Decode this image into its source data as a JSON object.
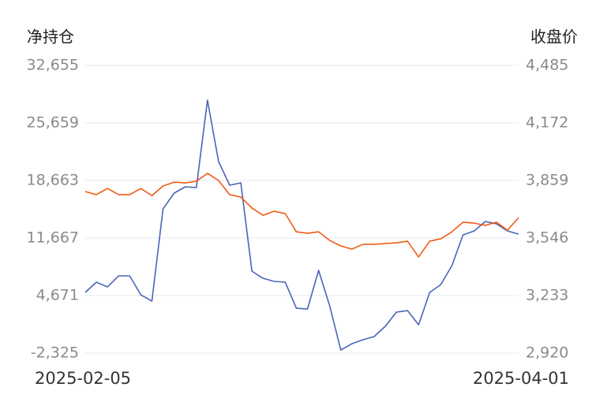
{
  "chart_data": {
    "type": "line",
    "ylabel": "净持仓",
    "y2label": "收盘价",
    "categories": [
      "2025-02-05",
      null,
      null,
      null,
      null,
      null,
      null,
      null,
      null,
      null,
      null,
      null,
      null,
      null,
      null,
      null,
      null,
      null,
      null,
      null,
      null,
      null,
      null,
      null,
      null,
      null,
      null,
      null,
      null,
      null,
      null,
      null,
      null,
      null,
      null,
      null,
      null,
      null,
      null,
      "2025-04-01"
    ],
    "ylim": [
      -2325,
      32655
    ],
    "yticks": [
      {
        "value": -2325,
        "label": "-2,325"
      },
      {
        "value": 4671,
        "label": "4,671"
      },
      {
        "value": 11667,
        "label": "11,667"
      },
      {
        "value": 18663,
        "label": "18,663"
      },
      {
        "value": 25659,
        "label": "25,659"
      },
      {
        "value": 32655,
        "label": "32,655"
      }
    ],
    "y2lim": [
      2920,
      4485
    ],
    "y2ticks": [
      {
        "value": 2920,
        "label": "2,920"
      },
      {
        "value": 3233,
        "label": "3,233"
      },
      {
        "value": 3546,
        "label": "3,546"
      },
      {
        "value": 3859,
        "label": "3,859"
      },
      {
        "value": 4172,
        "label": "4,172"
      },
      {
        "value": 4485,
        "label": "4,485"
      }
    ],
    "grid": true,
    "series": [
      {
        "color": "#4a64b8",
        "values": [
          5053,
          6299,
          5724,
          7066,
          7066,
          4766,
          3999,
          15212,
          17129,
          17896,
          17800,
          28438,
          20963,
          18087,
          18375,
          7641,
          6778,
          6395,
          6299,
          3136,
          3040,
          7737,
          3424,
          -1943,
          -1177,
          -697,
          -314,
          932,
          2657,
          2849,
          1124,
          5053,
          6011,
          8312,
          12049,
          12529,
          13679,
          13391,
          12529,
          12145
        ]
      },
      {
        "color": "#f05a14",
        "axis": "y2",
        "values": [
          3799,
          3782,
          3816,
          3782,
          3782,
          3816,
          3777,
          3829,
          3850,
          3846,
          3855,
          3898,
          3859,
          3782,
          3769,
          3709,
          3670,
          3692,
          3679,
          3580,
          3572,
          3580,
          3533,
          3503,
          3486,
          3512,
          3512,
          3516,
          3520,
          3529,
          3443,
          3529,
          3542,
          3580,
          3632,
          3627,
          3615,
          3632,
          3589,
          3657
        ]
      }
    ]
  }
}
